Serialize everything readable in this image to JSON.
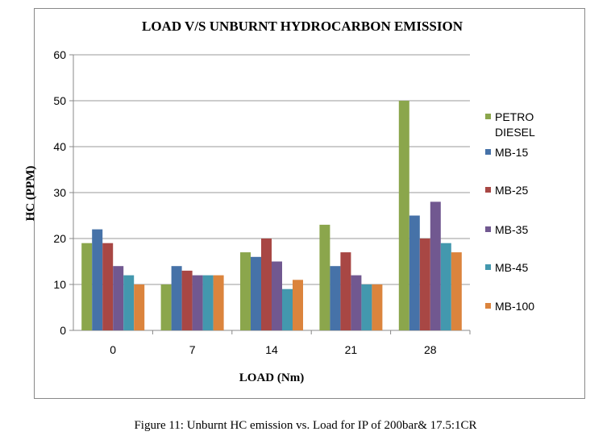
{
  "chart_data": {
    "type": "bar",
    "title": "LOAD V/S UNBURNT HYDROCARBON EMISSION",
    "xlabel": "LOAD (Nm)",
    "ylabel": "HC (PPM)",
    "ylim": [
      0,
      60
    ],
    "yticks": [
      0,
      10,
      20,
      30,
      40,
      50,
      60
    ],
    "grid": true,
    "legend_position": "right",
    "categories": [
      "0",
      "7",
      "14",
      "21",
      "28"
    ],
    "series": [
      {
        "name": "PETRO DIESEL",
        "legend_lines": [
          "PETRO",
          "DIESEL"
        ],
        "color": "#8BA64C",
        "values": [
          19,
          10,
          17,
          23,
          50
        ]
      },
      {
        "name": "MB-15",
        "legend_lines": [
          "MB-15"
        ],
        "color": "#4672A8",
        "values": [
          22,
          14,
          16,
          14,
          25
        ]
      },
      {
        "name": "MB-25",
        "legend_lines": [
          "MB-25"
        ],
        "color": "#A84744",
        "values": [
          19,
          13,
          20,
          17,
          20
        ]
      },
      {
        "name": "MB-35",
        "legend_lines": [
          "MB-35"
        ],
        "color": "#715890",
        "values": [
          14,
          12,
          15,
          12,
          28
        ]
      },
      {
        "name": "MB-45",
        "legend_lines": [
          "MB-45"
        ],
        "color": "#4398AE",
        "values": [
          12,
          12,
          9,
          10,
          19
        ]
      },
      {
        "name": "MB-100",
        "legend_lines": [
          "MB-100"
        ],
        "color": "#DB843D",
        "values": [
          10,
          12,
          11,
          10,
          17
        ]
      }
    ]
  },
  "caption": "Figure 11: Unburnt HC emission vs. Load for IP of 200bar& 17.5:1CR"
}
